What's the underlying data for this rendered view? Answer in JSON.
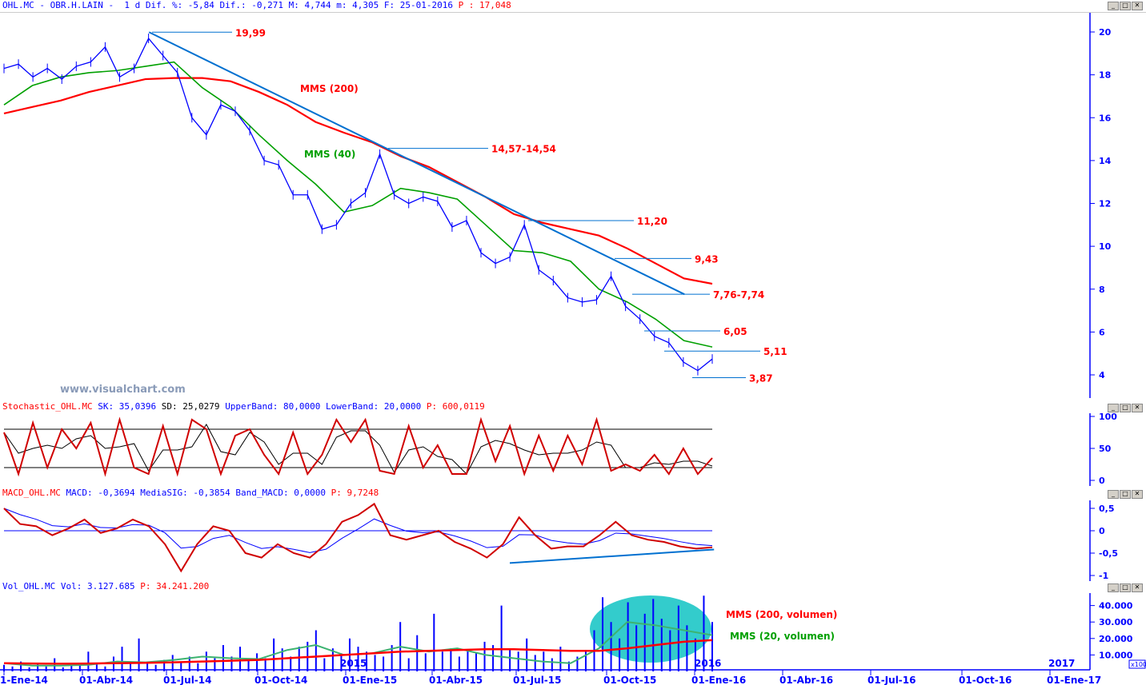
{
  "header": {
    "symbol": "OHL.MC - OBR.H.LAIN -",
    "period": "1 d",
    "text": "Dif. %: -5,84 Dif.: -0,271 M: 4,744 m: 4,305 F: 25-01-2016",
    "p": "P : 17,048"
  },
  "stoch_header": {
    "name": "Stochastic_OHL.MC",
    "sk": "SK: 35,0396",
    "sd": "SD: 25,0279",
    "bands": "UpperBand: 80,0000 LowerBand: 20,0000",
    "p": "P: 600,0119"
  },
  "macd_header": {
    "name": "MACD_OHL.MC",
    "macd": "MACD: -0,3694 MediaSIG: -0,3854 Band_MACD: 0,0000",
    "p": "P: 9,7248"
  },
  "vol_header": {
    "name": "Vol_OHL.MC",
    "vol": "Vol: 3.127.685",
    "p": "P: 34.241.200"
  },
  "watermark": "www.visualchart.com",
  "colors": {
    "price": "#0000ff",
    "mms200": "#ff0000",
    "mms40": "#00a000",
    "trend": "#0070d0",
    "annot": "#ff0000",
    "ellipse": "#33cccc"
  },
  "chart_data": [
    {
      "type": "line",
      "pane": "price",
      "x_start": "2014-01-02",
      "x_end": "2016-01-25",
      "x_ticks": [
        "1-Ene-14",
        "01-Abr-14",
        "01-Jul-14",
        "01-Oct-14",
        "01-Ene-15",
        "01-Abr-15",
        "01-Jul-15",
        "01-Oct-15",
        "01-Ene-16",
        "01-Abr-16",
        "01-Jul-16",
        "01-Oct-16",
        "01-Ene-17"
      ],
      "year_labels": [
        "2015",
        "2016",
        "2017"
      ],
      "y_ticks": [
        "20",
        "18",
        "16",
        "14",
        "12",
        "10",
        "8",
        "6",
        "4"
      ],
      "ylim": [
        3.2,
        21
      ],
      "series": [
        {
          "name": "OHL.MC",
          "values": [
            18.3,
            18.5,
            17.9,
            18.3,
            17.8,
            18.4,
            18.6,
            19.3,
            17.9,
            18.3,
            19.7,
            18.9,
            18.1,
            16.0,
            15.2,
            16.6,
            16.3,
            15.4,
            14.0,
            13.8,
            12.4,
            12.4,
            10.8,
            11.0,
            12.0,
            12.5,
            14.3,
            12.4,
            12.0,
            12.3,
            12.1,
            10.9,
            11.2,
            9.7,
            9.2,
            9.5,
            11.0,
            8.9,
            8.4,
            7.6,
            7.4,
            7.5,
            8.6,
            7.2,
            6.6,
            5.8,
            5.5,
            4.6,
            4.2,
            4.74
          ]
        },
        {
          "name": "MMS (200)",
          "values": [
            16.2,
            16.5,
            16.8,
            17.2,
            17.5,
            17.8,
            17.85,
            17.85,
            17.7,
            17.2,
            16.6,
            15.8,
            15.3,
            14.85,
            14.2,
            13.7,
            13.0,
            12.3,
            11.5,
            11.1,
            10.8,
            10.5,
            9.9,
            9.2,
            8.5,
            8.25
          ]
        },
        {
          "name": "MMS (40)",
          "values": [
            16.6,
            17.5,
            17.9,
            18.1,
            18.2,
            18.4,
            18.6,
            17.4,
            16.5,
            15.2,
            14.0,
            12.9,
            11.6,
            11.9,
            12.7,
            12.5,
            12.2,
            11.0,
            9.8,
            9.7,
            9.3,
            8.0,
            7.4,
            6.6,
            5.6,
            5.3
          ]
        }
      ],
      "annotations": [
        {
          "label": "19,99",
          "level": 19.99
        },
        {
          "label": "14,57-14,54",
          "level": 14.57
        },
        {
          "label": "11,20",
          "level": 11.2
        },
        {
          "label": "9,43",
          "level": 9.43
        },
        {
          "label": "7,76-7,74",
          "level": 7.76
        },
        {
          "label": "6,05",
          "level": 6.05
        },
        {
          "label": "5,11",
          "level": 5.11
        },
        {
          "label": "3,87",
          "level": 3.87
        }
      ],
      "trendline": {
        "from": [
          "2014-06-02",
          19.99
        ],
        "to": [
          "2015-12-15",
          7.76
        ]
      }
    },
    {
      "type": "line",
      "pane": "stochastic",
      "ylim": [
        0,
        100
      ],
      "y_ticks": [
        "100",
        "50",
        "0"
      ],
      "bands": [
        80,
        20
      ],
      "series": [
        {
          "name": "SK",
          "values": [
            75,
            10,
            90,
            20,
            80,
            50,
            90,
            10,
            95,
            20,
            10,
            85,
            10,
            95,
            80,
            10,
            70,
            80,
            40,
            10,
            75,
            10,
            40,
            95,
            60,
            95,
            15,
            10,
            85,
            20,
            55,
            10,
            10,
            95,
            30,
            85,
            10,
            70,
            15,
            70,
            25,
            95,
            15,
            25,
            15,
            40,
            10,
            50,
            10,
            35
          ]
        }
      ]
    },
    {
      "type": "line",
      "pane": "macd",
      "ylim": [
        -1.1,
        0.7
      ],
      "y_ticks": [
        "0,5",
        "0",
        "-0,5",
        "-1"
      ],
      "series": [
        {
          "name": "MACD",
          "values": [
            0.5,
            0.15,
            0.1,
            -0.1,
            0.05,
            0.25,
            -0.05,
            0.05,
            0.25,
            0.1,
            -0.3,
            -0.9,
            -0.3,
            0.1,
            0.0,
            -0.5,
            -0.6,
            -0.3,
            -0.5,
            -0.6,
            -0.3,
            0.2,
            0.35,
            0.6,
            -0.1,
            -0.2,
            -0.1,
            0.0,
            -0.25,
            -0.4,
            -0.6,
            -0.3,
            0.3,
            -0.1,
            -0.4,
            -0.35,
            -0.35,
            -0.1,
            0.2,
            -0.1,
            -0.2,
            -0.25,
            -0.35,
            -0.4,
            -0.37
          ]
        }
      ],
      "trendline": {
        "from": [
          "2015-06-15",
          -0.72
        ],
        "to": [
          "2016-01-15",
          -0.42
        ]
      }
    },
    {
      "type": "bar",
      "pane": "volume",
      "unit": "x100",
      "ylim": [
        0,
        47000
      ],
      "y_ticks": [
        "40.000",
        "30.000",
        "20.000",
        "10.000"
      ],
      "series": [
        {
          "name": "Vol",
          "values": [
            4000,
            3000,
            6000,
            2500,
            5000,
            3000,
            8000,
            2500,
            4000,
            3500,
            12000,
            5000,
            3000,
            9000,
            15000,
            6000,
            20000,
            5000,
            4000,
            7000,
            10000,
            6000,
            9000,
            5000,
            12000,
            8000,
            16000,
            9000,
            15000,
            7000,
            11000,
            8000,
            20000,
            14000,
            9000,
            15000,
            18000,
            25000,
            8000,
            14000,
            11000,
            20000,
            15000,
            12000,
            10000,
            9000,
            16000,
            30000,
            8000,
            22000,
            11000,
            35000,
            12000,
            14000,
            9000,
            13000,
            11000,
            18000,
            16000,
            40000,
            14000,
            12000,
            20000,
            10000,
            12000,
            8000,
            15000,
            6000,
            9000,
            12000,
            25000,
            45000,
            30000,
            20000,
            42000,
            28000,
            35000,
            44000,
            32000,
            25000,
            40000,
            28000,
            20000,
            46000,
            30000
          ]
        },
        {
          "name": "MMS (200, volumen)",
          "values": [
            5000,
            4800,
            4700,
            4800,
            5000,
            5200,
            5500,
            6000,
            6500,
            7000,
            8000,
            9000,
            10000,
            11000,
            12000,
            12500,
            13000,
            13500,
            13500,
            13000,
            12500,
            12500,
            14000,
            16000,
            18000,
            19000
          ]
        },
        {
          "name": "MMS (20, volumen)",
          "values": [
            5000,
            3500,
            3500,
            4000,
            6000,
            5500,
            7000,
            9000,
            8000,
            7500,
            13000,
            16000,
            10000,
            11000,
            15000,
            12000,
            14000,
            10000,
            8000,
            6000,
            5000,
            14000,
            30000,
            28000,
            25000,
            22000
          ]
        }
      ]
    }
  ]
}
